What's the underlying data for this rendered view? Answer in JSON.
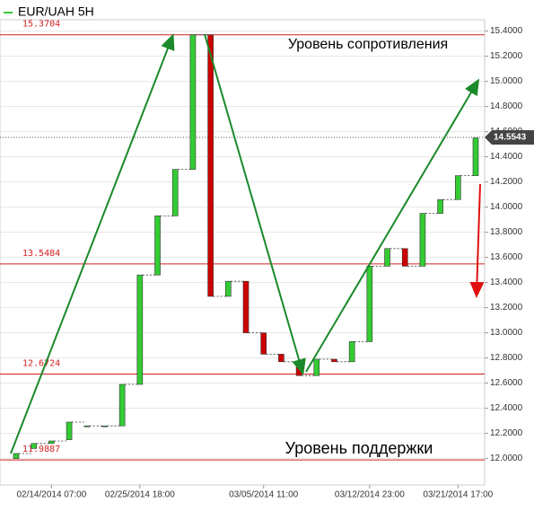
{
  "chart_data": {
    "type": "candlestick",
    "title": "EUR/UAH 5H",
    "categories": [
      null,
      null,
      "02/14/2014 07:00",
      null,
      null,
      null,
      null,
      "02/25/2014 18:00",
      null,
      null,
      null,
      null,
      null,
      null,
      "03/05/2014 11:00",
      null,
      null,
      null,
      null,
      null,
      "03/12/2014 23:00",
      null,
      null,
      null,
      null,
      "03/21/2014 17:00",
      null
    ],
    "open": [
      12.0,
      12.08,
      12.12,
      12.15,
      12.26,
      12.26,
      12.26,
      12.59,
      13.46,
      13.93,
      14.3,
      15.37,
      13.29,
      13.41,
      13.0,
      12.83,
      12.77,
      12.66,
      12.79,
      12.77,
      12.93,
      13.53,
      13.67,
      13.53,
      13.95,
      14.06,
      14.25
    ],
    "close": [
      12.04,
      12.12,
      12.14,
      12.29,
      12.26,
      12.26,
      12.59,
      13.46,
      13.93,
      14.3,
      15.37,
      13.29,
      13.41,
      13.0,
      12.83,
      12.77,
      12.66,
      12.79,
      12.77,
      12.93,
      13.53,
      13.67,
      13.53,
      13.95,
      14.06,
      14.25,
      14.55
    ],
    "up_color": "#33cc33",
    "down_color": "#cc0000",
    "ylim": [
      11.79,
      15.49
    ],
    "yticks": [
      {
        "value": 12.0,
        "label": "12.0000"
      },
      {
        "value": 12.2,
        "label": "12.2000"
      },
      {
        "value": 12.4,
        "label": "12.4000"
      },
      {
        "value": 12.6,
        "label": "12.6000"
      },
      {
        "value": 12.8,
        "label": "12.8000"
      },
      {
        "value": 13.0,
        "label": "13.0000"
      },
      {
        "value": 13.2,
        "label": "13.2000"
      },
      {
        "value": 13.4,
        "label": "13.4000"
      },
      {
        "value": 13.6,
        "label": "13.6000"
      },
      {
        "value": 13.8,
        "label": "13.8000"
      },
      {
        "value": 14.0,
        "label": "14.0000"
      },
      {
        "value": 14.2,
        "label": "14.2000"
      },
      {
        "value": 14.4,
        "label": "14.4000"
      },
      {
        "value": 14.6,
        "label": "14.6000"
      },
      {
        "value": 14.8,
        "label": "14.8000"
      },
      {
        "value": 15.0,
        "label": "15.0000"
      },
      {
        "value": 15.2,
        "label": "15.2000"
      },
      {
        "value": 15.4,
        "label": "15.4000"
      }
    ],
    "levels": [
      {
        "value": 15.3704,
        "label": "15.3704"
      },
      {
        "value": 13.5484,
        "label": "13.5484"
      },
      {
        "value": 12.6724,
        "label": "12.6724"
      },
      {
        "value": 11.9887,
        "label": "11.9887"
      }
    ],
    "level_color": "#d42020",
    "current_price": {
      "value": 14.5543,
      "label": "14.5543"
    },
    "annotations": [
      "Уровень сопротивления",
      "Уровень поддержки"
    ]
  }
}
